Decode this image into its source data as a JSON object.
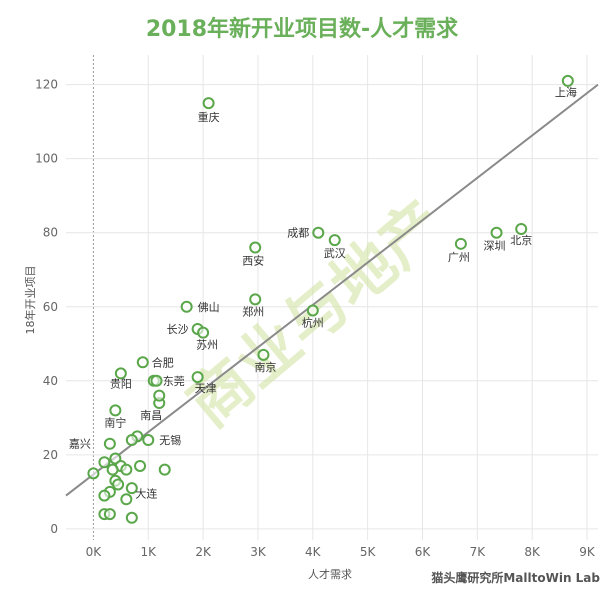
{
  "colors": {
    "title": "#6aaf5a",
    "marker": "#5aa64a",
    "trend": "#8a8a8a",
    "grid": "#e6e6e6",
    "watermark": "#cfe3a0"
  },
  "watermark": "商业与地产",
  "source": "猫头鹰研究所MalltoWin Lab",
  "chart_data": {
    "type": "scatter",
    "title": "2018年新开业项目数-人才需求",
    "xlabel": "人才需求",
    "ylabel": "18年开业项目",
    "xlim": [
      -500,
      9200
    ],
    "ylim": [
      -3,
      128
    ],
    "x_ticks": [
      0,
      1000,
      2000,
      3000,
      4000,
      5000,
      6000,
      7000,
      8000,
      9000
    ],
    "x_tick_labels": [
      "0K",
      "1K",
      "2K",
      "3K",
      "4K",
      "5K",
      "6K",
      "7K",
      "8K",
      "9K"
    ],
    "y_ticks": [
      0,
      20,
      40,
      60,
      80,
      100,
      120
    ],
    "y_tick_labels": [
      "0",
      "20",
      "40",
      "60",
      "80",
      "100",
      "120"
    ],
    "grid": true,
    "trend_line": {
      "x": [
        -500,
        9200
      ],
      "y": [
        9,
        120
      ]
    },
    "points": [
      {
        "x": 8650,
        "y": 121,
        "label": "上海"
      },
      {
        "x": 2100,
        "y": 115,
        "label": "重庆"
      },
      {
        "x": 7800,
        "y": 81,
        "label": "北京"
      },
      {
        "x": 7350,
        "y": 80,
        "label": "深圳"
      },
      {
        "x": 6700,
        "y": 77,
        "label": "广州"
      },
      {
        "x": 4100,
        "y": 80,
        "label": "成都"
      },
      {
        "x": 4400,
        "y": 78,
        "label": "武汉"
      },
      {
        "x": 2950,
        "y": 76,
        "label": "西安"
      },
      {
        "x": 2950,
        "y": 62,
        "label": "郑州"
      },
      {
        "x": 4000,
        "y": 59,
        "label": "杭州"
      },
      {
        "x": 1700,
        "y": 60,
        "label": "佛山"
      },
      {
        "x": 1900,
        "y": 54,
        "label": "长沙"
      },
      {
        "x": 2000,
        "y": 53,
        "label": "苏州"
      },
      {
        "x": 3100,
        "y": 47,
        "label": "南京"
      },
      {
        "x": 900,
        "y": 45,
        "label": "合肥"
      },
      {
        "x": 500,
        "y": 42,
        "label": "贵阳"
      },
      {
        "x": 1100,
        "y": 40,
        "label": "东莞"
      },
      {
        "x": 1900,
        "y": 41,
        "label": "天津"
      },
      {
        "x": 1200,
        "y": 34,
        "label": "南昌"
      },
      {
        "x": 400,
        "y": 32,
        "label": "南宁"
      },
      {
        "x": 1000,
        "y": 24,
        "label": "无锡"
      },
      {
        "x": 300,
        "y": 23,
        "label": "嘉兴"
      },
      {
        "x": 600,
        "y": 8,
        "label": "大连"
      },
      {
        "x": 1150,
        "y": 40,
        "label": ""
      },
      {
        "x": 1200,
        "y": 36,
        "label": ""
      },
      {
        "x": 800,
        "y": 25,
        "label": ""
      },
      {
        "x": 700,
        "y": 24,
        "label": ""
      },
      {
        "x": 400,
        "y": 19,
        "label": ""
      },
      {
        "x": 200,
        "y": 18,
        "label": ""
      },
      {
        "x": 500,
        "y": 17,
        "label": ""
      },
      {
        "x": 350,
        "y": 16,
        "label": ""
      },
      {
        "x": 600,
        "y": 16,
        "label": ""
      },
      {
        "x": 850,
        "y": 17,
        "label": ""
      },
      {
        "x": 1300,
        "y": 16,
        "label": ""
      },
      {
        "x": 0,
        "y": 15,
        "label": ""
      },
      {
        "x": 400,
        "y": 13,
        "label": ""
      },
      {
        "x": 450,
        "y": 12,
        "label": ""
      },
      {
        "x": 700,
        "y": 11,
        "label": ""
      },
      {
        "x": 300,
        "y": 10,
        "label": ""
      },
      {
        "x": 200,
        "y": 9,
        "label": ""
      },
      {
        "x": 200,
        "y": 4,
        "label": ""
      },
      {
        "x": 300,
        "y": 4,
        "label": ""
      },
      {
        "x": 700,
        "y": 3,
        "label": ""
      }
    ]
  }
}
